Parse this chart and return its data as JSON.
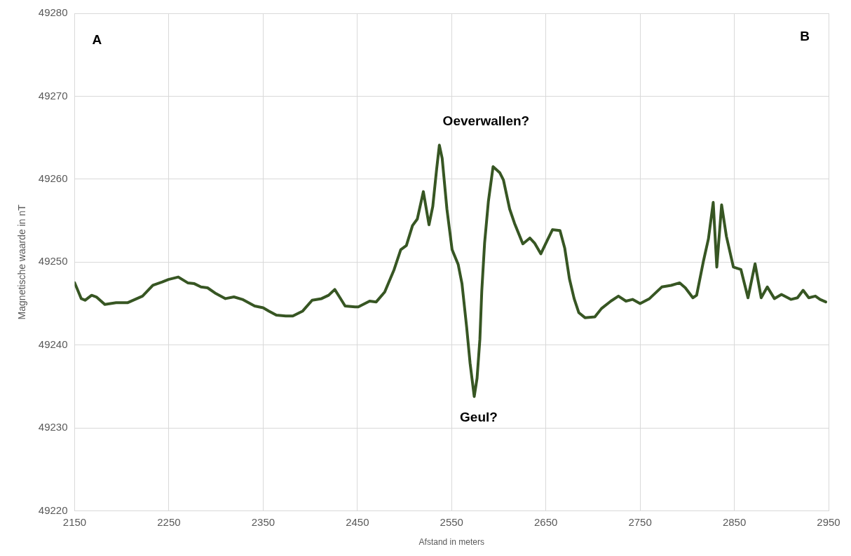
{
  "chart_data": {
    "type": "line",
    "xlabel": "Afstand in meters",
    "ylabel": "Magnetische waarde in nT",
    "xlim": [
      2150,
      2950
    ],
    "xticks": [
      2150,
      2250,
      2350,
      2450,
      2550,
      2650,
      2750,
      2850,
      2950
    ],
    "ylim": [
      49220,
      49280
    ],
    "yticks": [
      49220,
      49230,
      49240,
      49250,
      49260,
      49270,
      49280
    ],
    "grid": true,
    "legend": false,
    "line_style": "solid",
    "annotations": [
      "A",
      "B",
      "Oeverwallen?",
      "Geul?"
    ],
    "series": [
      {
        "color": "#375623",
        "x": [
          2150,
          2157,
          2161,
          2168,
          2173,
          2182,
          2194,
          2206,
          2222,
          2233,
          2243,
          2249.5,
          2260,
          2270,
          2277,
          2284,
          2291,
          2300,
          2310,
          2319,
          2328,
          2341,
          2350,
          2356,
          2364,
          2374,
          2381.5,
          2392,
          2402,
          2412,
          2419.5,
          2426,
          2431,
          2437,
          2447.5,
          2451,
          2463,
          2470,
          2479,
          2489,
          2496,
          2502,
          2508.5,
          2513.6,
          2520,
          2526,
          2530,
          2534,
          2537,
          2540,
          2545,
          2550.5,
          2557,
          2561,
          2566,
          2569.6,
          2574,
          2577,
          2580,
          2582,
          2585,
          2589,
          2594,
          2601,
          2605,
          2611.6,
          2616.7,
          2625.6,
          2633,
          2638,
          2644.7,
          2651,
          2657,
          2665,
          2670,
          2675,
          2680,
          2685,
          2691.5,
          2702,
          2709,
          2719,
          2727,
          2735,
          2742,
          2750,
          2760,
          2773,
          2783,
          2792,
          2798,
          2806,
          2810,
          2817,
          2822.5,
          2827.6,
          2831.4,
          2836.5,
          2841.6,
          2849,
          2857,
          2864.5,
          2872,
          2878.5,
          2885,
          2892.5,
          2900,
          2910,
          2917,
          2923,
          2929,
          2936,
          2941,
          2947
        ],
        "values": [
          49247.5,
          49245.6,
          49245.4,
          49246.0,
          49245.8,
          49244.9,
          49245.1,
          49245.1,
          49245.9,
          49247.2,
          49247.6,
          49247.9,
          49248.2,
          49247.5,
          49247.4,
          49247.0,
          49246.9,
          49246.2,
          49245.6,
          49245.8,
          49245.5,
          49244.7,
          49244.5,
          49244.1,
          49243.6,
          49243.5,
          49243.5,
          49244.1,
          49245.4,
          49245.6,
          49246.0,
          49246.7,
          49245.8,
          49244.7,
          49244.6,
          49244.6,
          49245.3,
          49245.2,
          49246.4,
          49249.1,
          49251.5,
          49252.0,
          49254.4,
          49255.2,
          49258.5,
          49254.5,
          49256.7,
          49261.1,
          49264.1,
          49262.5,
          49256.4,
          49251.5,
          49249.7,
          49247.4,
          49242.1,
          49237.8,
          49233.8,
          49236.0,
          49240.7,
          49246.5,
          49252.3,
          49257.3,
          49261.5,
          49260.8,
          49259.9,
          49256.4,
          49254.7,
          49252.2,
          49252.9,
          49252.3,
          49251.0,
          49252.5,
          49253.9,
          49253.8,
          49251.7,
          49248.0,
          49245.6,
          49243.9,
          49243.3,
          49243.4,
          49244.4,
          49245.3,
          49245.9,
          49245.3,
          49245.5,
          49245.0,
          49245.6,
          49247.0,
          49247.2,
          49247.5,
          49246.9,
          49245.7,
          49246.0,
          49250.0,
          49252.8,
          49257.2,
          49249.4,
          49256.9,
          49253.1,
          49249.4,
          49249.1,
          49245.7,
          49249.8,
          49245.7,
          49247.0,
          49245.6,
          49246.1,
          49245.5,
          49245.7,
          49246.6,
          49245.7,
          49245.9,
          49245.5,
          49245.2
        ]
      }
    ]
  }
}
